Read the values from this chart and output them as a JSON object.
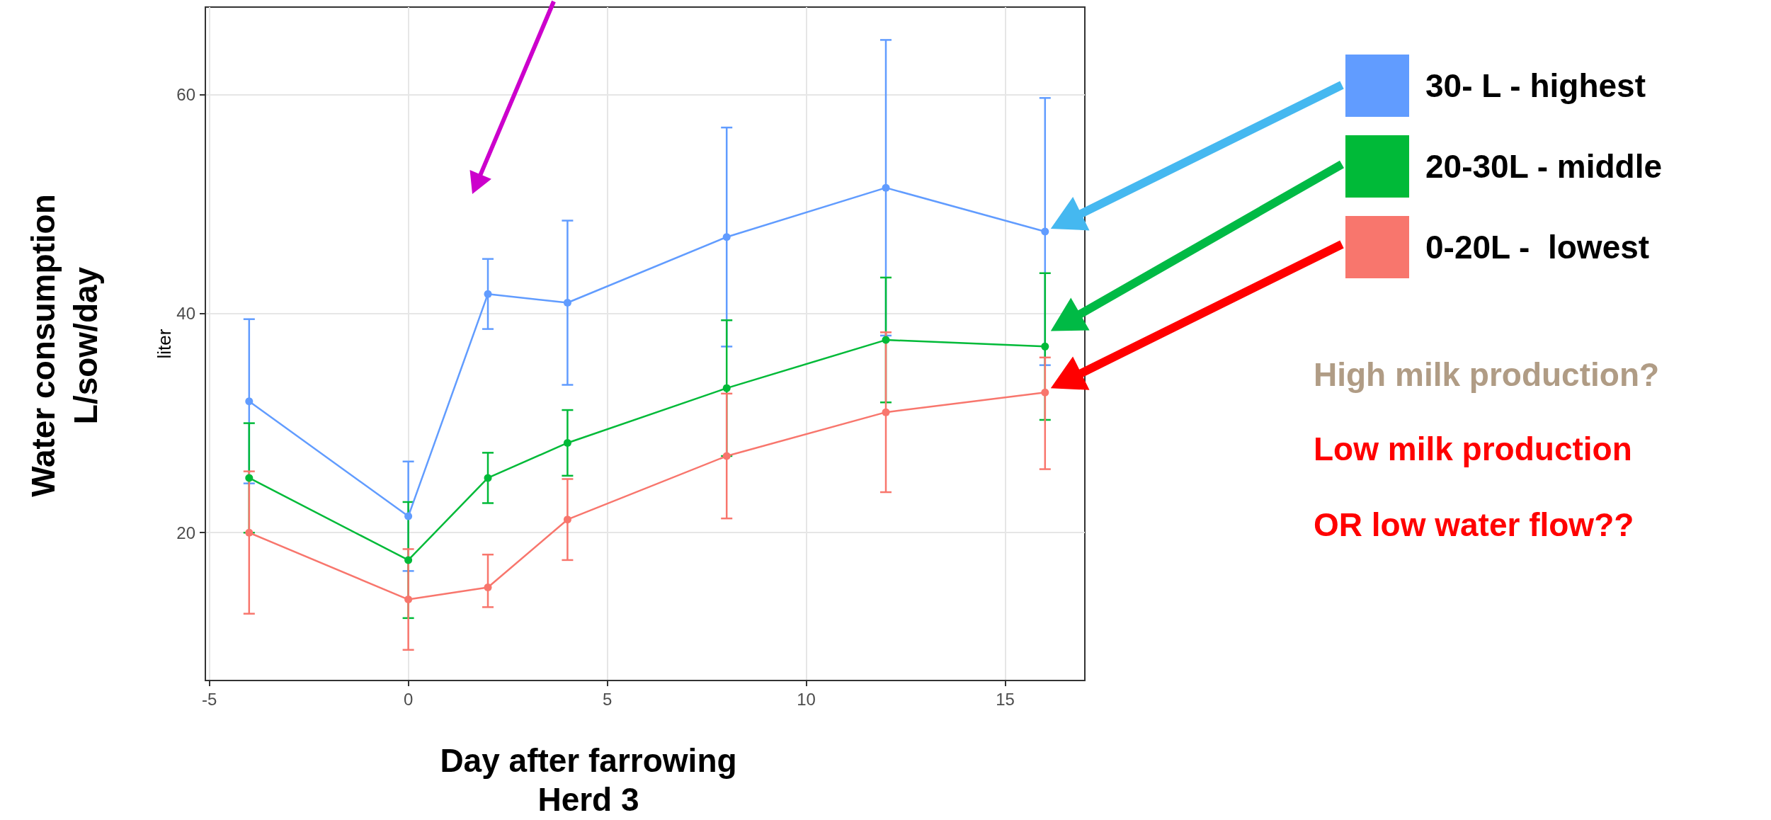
{
  "chart_data": {
    "type": "line",
    "xlabel": "Day after farrowing",
    "ylabel": "liter",
    "x": [
      -4,
      0,
      2,
      4,
      8,
      12,
      16
    ],
    "series": [
      {
        "name": "30- L - highest",
        "color": "#619cff",
        "values": [
          32,
          21.5,
          41.8,
          41,
          47,
          51.5,
          47.5
        ],
        "errors": [
          7.5,
          5,
          3.2,
          7.5,
          10,
          13.5,
          12.2
        ]
      },
      {
        "name": "20-30L - middle",
        "color": "#00ba38",
        "values": [
          25,
          17.5,
          25,
          28.2,
          33.2,
          37.6,
          37
        ],
        "errors": [
          5,
          5.3,
          2.3,
          3,
          6.2,
          5.7,
          6.7
        ]
      },
      {
        "name": "0-20L -  lowest",
        "color": "#f8766d",
        "values": [
          20,
          13.9,
          15,
          21.2,
          27,
          31,
          32.8
        ],
        "errors": [
          [
            12.6,
            25.6
          ],
          4.6,
          [
            13.2,
            18
          ],
          3.7,
          5.7,
          7.3,
          [
            25.8,
            36
          ]
        ]
      }
    ],
    "xlim": [
      -5.1,
      17
    ],
    "ylim": [
      6.5,
      68
    ],
    "xticks": [
      -5,
      0,
      5,
      10,
      15
    ],
    "yticks": [
      20,
      40,
      60
    ],
    "grid": true,
    "legend": "right",
    "marker": "circle",
    "line_style": "solid",
    "annotations": [
      "Water consumption\nL/sow/day",
      "Herd 3",
      "High milk production?",
      "Low milk production",
      "OR low water flow??"
    ]
  }
}
